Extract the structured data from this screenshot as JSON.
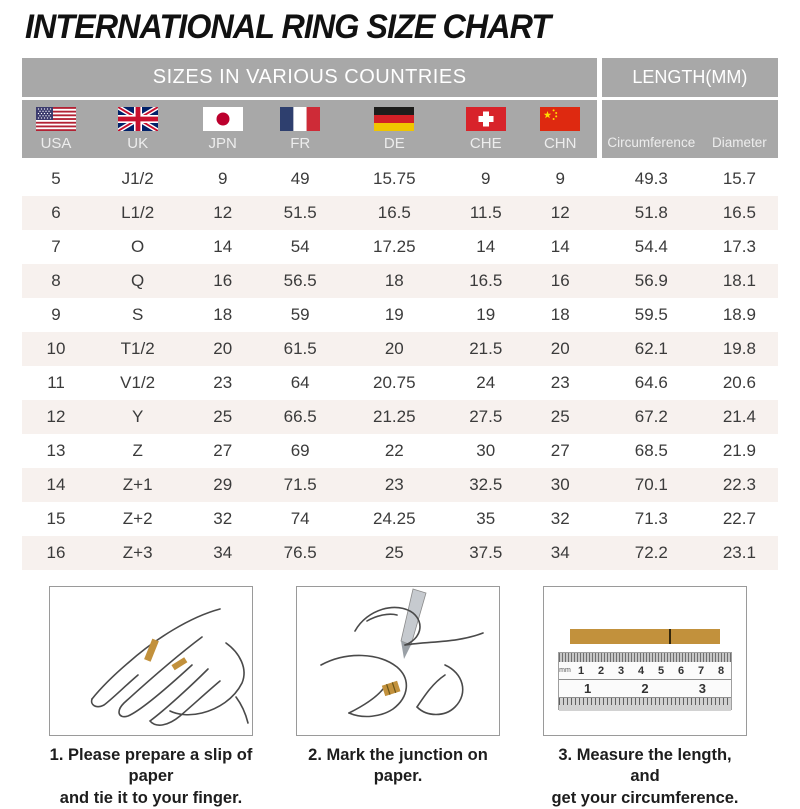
{
  "title": "INTERNATIONAL RING SIZE CHART",
  "chart_data": {
    "type": "table",
    "title": "INTERNATIONAL RING SIZE CHART",
    "group_headers": [
      "SIZES IN VARIOUS COUNTRIES",
      "LENGTH(MM)"
    ],
    "columns": [
      "USA",
      "UK",
      "JPN",
      "FR",
      "DE",
      "CHE",
      "CHN",
      "Circumference",
      "Diameter"
    ],
    "rows": [
      [
        "5",
        "J1/2",
        "9",
        "49",
        "15.75",
        "9",
        "9",
        "49.3",
        "15.7"
      ],
      [
        "6",
        "L1/2",
        "12",
        "51.5",
        "16.5",
        "11.5",
        "12",
        "51.8",
        "16.5"
      ],
      [
        "7",
        "O",
        "14",
        "54",
        "17.25",
        "14",
        "14",
        "54.4",
        "17.3"
      ],
      [
        "8",
        "Q",
        "16",
        "56.5",
        "18",
        "16.5",
        "16",
        "56.9",
        "18.1"
      ],
      [
        "9",
        "S",
        "18",
        "59",
        "19",
        "19",
        "18",
        "59.5",
        "18.9"
      ],
      [
        "10",
        "T1/2",
        "20",
        "61.5",
        "20",
        "21.5",
        "20",
        "62.1",
        "19.8"
      ],
      [
        "11",
        "V1/2",
        "23",
        "64",
        "20.75",
        "24",
        "23",
        "64.6",
        "20.6"
      ],
      [
        "12",
        "Y",
        "25",
        "66.5",
        "21.25",
        "27.5",
        "25",
        "67.2",
        "21.4"
      ],
      [
        "13",
        "Z",
        "27",
        "69",
        "22",
        "30",
        "27",
        "68.5",
        "21.9"
      ],
      [
        "14",
        "Z+1",
        "29",
        "71.5",
        "23",
        "32.5",
        "30",
        "70.1",
        "22.3"
      ],
      [
        "15",
        "Z+2",
        "32",
        "74",
        "24.25",
        "35",
        "32",
        "71.3",
        "22.7"
      ],
      [
        "16",
        "Z+3",
        "34",
        "76.5",
        "25",
        "37.5",
        "34",
        "72.2",
        "23.1"
      ]
    ],
    "flags": [
      "usa-flag-icon",
      "uk-flag-icon",
      "japan-flag-icon",
      "france-flag-icon",
      "germany-flag-icon",
      "switzerland-flag-icon",
      "china-flag-icon"
    ]
  },
  "instructions": [
    {
      "caption_line1": "1. Please prepare a slip of paper",
      "caption_line2": "and tie it to your finger.",
      "illustration": "hand-with-paper-illustration"
    },
    {
      "caption_line1": "2. Mark the junction on paper.",
      "caption_line2": "",
      "illustration": "marking-junction-illustration"
    },
    {
      "caption_line1": "3. Measure the length, and",
      "caption_line2": "get your circumference.",
      "illustration": "ruler-measure-illustration"
    }
  ],
  "ruler": {
    "unit_label": "mm",
    "cm_numbers": [
      "1",
      "2",
      "3",
      "4",
      "5",
      "6",
      "7",
      "8"
    ],
    "inch_numbers": [
      "1",
      "2",
      "3"
    ]
  },
  "colors": {
    "header_gray": "#a8a8a8",
    "row_stripe": "#f7f1ee",
    "paper_tan": "#c2913c"
  }
}
